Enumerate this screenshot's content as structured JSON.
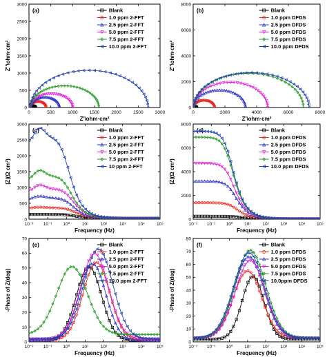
{
  "colors": {
    "Blank": "#000000",
    "s1": "#e8261e",
    "s2": "#2b35c6",
    "s3": "#e022d6",
    "s4": "#1f9a1f",
    "s5": "#1f3fb0"
  },
  "chart_data": [
    {
      "id": "a",
      "type": "scatter",
      "tag": "(a)",
      "xlabel": "Z'\\ohm·cm²",
      "ylabel": "Z''\\ohm·cm²",
      "xlim": [
        0,
        3000
      ],
      "ylim": [
        0,
        3000
      ],
      "xticks": [
        "0",
        "500",
        "1000",
        "1500",
        "2000",
        "2500",
        "3000"
      ],
      "yticks": [
        "0",
        "500",
        "1000",
        "1500",
        "2000",
        "2500",
        "3000"
      ],
      "legend_position": "top-right",
      "series": [
        {
          "name": "Blank",
          "color": "#000000",
          "marker": "square",
          "shape": "arc",
          "r0": 30,
          "r1": 150,
          "amp": 48
        },
        {
          "name": "1.0 ppm 2-FFT",
          "color": "#e8261e",
          "marker": "circle",
          "shape": "arc",
          "r0": 30,
          "r1": 390,
          "amp": 175
        },
        {
          "name": "2.5 ppm 2-FFT",
          "color": "#2b35c6",
          "marker": "triangle",
          "shape": "arc",
          "r0": 30,
          "r1": 700,
          "amp": 300
        },
        {
          "name": "5.0 ppm 2-FFT",
          "color": "#e022d6",
          "marker": "triangle-down",
          "shape": "arc",
          "r0": 30,
          "r1": 1000,
          "amp": 400
        },
        {
          "name": "7.5 ppm 2-FFT",
          "color": "#1f9a1f",
          "marker": "diamond",
          "shape": "arc",
          "r0": 30,
          "r1": 1600,
          "amp": 630
        },
        {
          "name": "10.0 ppm 2-FFT",
          "color": "#1f3fb0",
          "marker": "triangle-left",
          "shape": "arc",
          "r0": 30,
          "r1": 2720,
          "amp": 1080
        }
      ]
    },
    {
      "id": "b",
      "type": "scatter",
      "tag": "(b)",
      "xlabel": "Z'\\ohm·cm²",
      "ylabel": "Z''\\ohm·cm²",
      "xlim": [
        0,
        8000
      ],
      "ylim": [
        0,
        8000
      ],
      "xticks": [
        "0",
        "2000",
        "4000",
        "6000",
        "8000"
      ],
      "yticks": [
        "0",
        "2000",
        "4000",
        "6000",
        "8000"
      ],
      "legend_position": "top-right",
      "series": [
        {
          "name": "Blank",
          "color": "#000000",
          "marker": "square",
          "shape": "arc",
          "r0": 20,
          "r1": 220,
          "amp": 70
        },
        {
          "name": "1.0 ppm DFDS",
          "color": "#e8261e",
          "marker": "circle",
          "shape": "arc",
          "r0": 20,
          "r1": 1350,
          "amp": 560
        },
        {
          "name": "2.5 ppm DFDS",
          "color": "#2b35c6",
          "marker": "triangle",
          "shape": "arc",
          "r0": 20,
          "r1": 3300,
          "amp": 1350
        },
        {
          "name": "5.0 ppm DFDS",
          "color": "#e022d6",
          "marker": "triangle-down",
          "shape": "arc",
          "r0": 20,
          "r1": 4700,
          "amp": 1950
        },
        {
          "name": "7.5 ppm DFDS",
          "color": "#1f9a1f",
          "marker": "diamond",
          "shape": "arc",
          "r0": 20,
          "r1": 6950,
          "amp": 2650
        },
        {
          "name": "10.0 ppm DFDS",
          "color": "#1f3fb0",
          "marker": "triangle-left",
          "shape": "arc",
          "r0": 20,
          "r1": 7300,
          "amp": 2700
        }
      ]
    },
    {
      "id": "c",
      "type": "scatter",
      "tag": "(c)",
      "xlabel": "Frequency (Hz)",
      "ylabel": "|Z|(Ω cm²)",
      "xscale": "log",
      "xlim": [
        0.01,
        100000
      ],
      "ylim": [
        0,
        3000
      ],
      "xticks": [
        "10⁻²",
        "10⁻¹",
        "10⁰",
        "10¹",
        "10²",
        "10³",
        "10⁴",
        "10⁵"
      ],
      "yticks": [
        "0",
        "500",
        "1000",
        "1500",
        "2000",
        "2500",
        "3000"
      ],
      "legend_position": "top-right",
      "series": [
        {
          "name": "Blank",
          "color": "#000000",
          "marker": "square",
          "shape": "bode_mag",
          "zhigh": 30,
          "zlow": 150,
          "fc": 2.0,
          "bump": 0
        },
        {
          "name": "1.0 ppm 2-FFT",
          "color": "#e8261e",
          "marker": "circle",
          "shape": "bode_mag",
          "zhigh": 30,
          "zlow": 360,
          "fc": 2.0,
          "bump": 0.05
        },
        {
          "name": "2.5 ppm 2-FFT",
          "color": "#2b35c6",
          "marker": "triangle",
          "shape": "bode_mag",
          "zhigh": 30,
          "zlow": 680,
          "fc": 1.5,
          "bump": 0.08
        },
        {
          "name": "5.0 ppm 2-FFT",
          "color": "#e022d6",
          "marker": "triangle-down",
          "shape": "bode_mag",
          "zhigh": 30,
          "zlow": 960,
          "fc": 1.5,
          "bump": 0.12
        },
        {
          "name": "7.5 ppm 2-FFT",
          "color": "#1f9a1f",
          "marker": "diamond",
          "shape": "bode_mag",
          "zhigh": 30,
          "zlow": 1380,
          "fc": 1.2,
          "bump": 0.12
        },
        {
          "name": "10 ppm 2-FFT",
          "color": "#1f3fb0",
          "marker": "triangle-left",
          "shape": "bode_mag",
          "zhigh": 30,
          "zlow": 2620,
          "fc": 0.9,
          "bump": 0.1
        }
      ]
    },
    {
      "id": "d",
      "type": "scatter",
      "tag": "(d)",
      "xlabel": "Frequency (Hz)",
      "ylabel": "|Z|(Ω cm²)",
      "xscale": "log",
      "xlim": [
        0.01,
        100000
      ],
      "ylim": [
        0,
        8000
      ],
      "xticks": [
        "10⁻²",
        "10⁻¹",
        "10⁰",
        "10¹",
        "10²",
        "10³",
        "10⁴",
        "10⁵"
      ],
      "yticks": [
        "0",
        "2000",
        "4000",
        "6000",
        "8000"
      ],
      "legend_position": "top-right",
      "series": [
        {
          "name": "Blank",
          "color": "#000000",
          "marker": "square",
          "shape": "bode_mag",
          "zhigh": 30,
          "zlow": 240,
          "fc": 3.0,
          "bump": 0
        },
        {
          "name": "1.0 ppm DFDS",
          "color": "#e8261e",
          "marker": "circle",
          "shape": "bode_mag",
          "zhigh": 30,
          "zlow": 1380,
          "fc": 1.8,
          "bump": 0
        },
        {
          "name": "2.5 ppm DFDS",
          "color": "#2b35c6",
          "marker": "triangle",
          "shape": "bode_mag",
          "zhigh": 30,
          "zlow": 3200,
          "fc": 1.5,
          "bump": 0
        },
        {
          "name": "5.0 ppm DFDS",
          "color": "#e022d6",
          "marker": "triangle-down",
          "shape": "bode_mag",
          "zhigh": 30,
          "zlow": 4700,
          "fc": 1.2,
          "bump": 0
        },
        {
          "name": "7.5 ppm DFDS",
          "color": "#1f9a1f",
          "marker": "diamond",
          "shape": "bode_mag",
          "zhigh": 30,
          "zlow": 6900,
          "fc": 1.0,
          "bump": 0
        },
        {
          "name": "10.0 ppm DFDS",
          "color": "#1f3fb0",
          "marker": "triangle-left",
          "shape": "bode_mag",
          "zhigh": 30,
          "zlow": 7400,
          "fc": 1.0,
          "bump": 0
        }
      ]
    },
    {
      "id": "e",
      "type": "scatter",
      "tag": "(e)",
      "xlabel": "Frequency (Hz)",
      "ylabel": "-Phase of Z(deg)",
      "xscale": "log",
      "xlim": [
        0.01,
        100000
      ],
      "ylim": [
        0,
        70
      ],
      "xticks": [
        "10⁻²",
        "10⁻¹",
        "10⁰",
        "10¹",
        "10²",
        "10³",
        "10⁴",
        "10⁵"
      ],
      "yticks": [
        "0",
        "10",
        "20",
        "30",
        "40",
        "50",
        "60",
        "70"
      ],
      "legend_position": "top-right",
      "series": [
        {
          "name": "Blank",
          "color": "#000000",
          "marker": "square",
          "shape": "bode_phase",
          "peak": 51,
          "fpk": 16,
          "width": 0.95,
          "base": 1
        },
        {
          "name": "1.0 ppm 2-FFT",
          "color": "#e8261e",
          "marker": "circle",
          "shape": "bode_phase",
          "peak": 54,
          "fpk": 40,
          "width": 1.0,
          "base": 1
        },
        {
          "name": "2.5 ppm 2-FFT",
          "color": "#2b35c6",
          "marker": "triangle",
          "shape": "bode_phase",
          "peak": 53,
          "fpk": 25,
          "width": 1.0,
          "base": 1
        },
        {
          "name": "5.0 ppm 2-FFT",
          "color": "#e022d6",
          "marker": "triangle-down",
          "shape": "bode_phase",
          "peak": 60,
          "fpk": 32,
          "width": 1.05,
          "base": 2
        },
        {
          "name": "7.5 ppm 2-FFT",
          "color": "#1f9a1f",
          "marker": "diamond",
          "shape": "bode_phase",
          "peak": 51,
          "fpk": 2,
          "width": 1.15,
          "base": 5
        },
        {
          "name": "10.0 ppm 2-FFT",
          "color": "#1f3fb0",
          "marker": "triangle-left",
          "shape": "bode_phase",
          "peak": 63,
          "fpk": 50,
          "width": 1.1,
          "base": 2
        }
      ]
    },
    {
      "id": "f",
      "type": "scatter",
      "tag": "(f)",
      "xlabel": "Frequency (Hz)",
      "ylabel": "-Phase of Z(deg)",
      "xscale": "log",
      "xlim": [
        0.01,
        100000
      ],
      "ylim": [
        0,
        80
      ],
      "xticks": [
        "10⁻²",
        "10⁻¹",
        "10⁰",
        "10¹",
        "10²",
        "10³",
        "10⁴",
        "10⁵"
      ],
      "yticks": [
        "0",
        "10",
        "20",
        "30",
        "40",
        "50",
        "60",
        "70",
        "80"
      ],
      "legend_position": "top-right",
      "series": [
        {
          "name": "Blank",
          "color": "#000000",
          "marker": "square",
          "shape": "bode_phase",
          "peak": 51,
          "fpk": 20,
          "width": 0.85,
          "base": 2
        },
        {
          "name": "1.0 ppm DFDS",
          "color": "#e8261e",
          "marker": "circle",
          "shape": "bode_phase",
          "peak": 55,
          "fpk": 10,
          "width": 1.1,
          "base": 3
        },
        {
          "name": "2.5 ppm DFDS",
          "color": "#2b35c6",
          "marker": "triangle",
          "shape": "bode_phase",
          "peak": 66,
          "fpk": 12,
          "width": 1.15,
          "base": 3
        },
        {
          "name": "5.0 ppm DFDS",
          "color": "#e022d6",
          "marker": "triangle-down",
          "shape": "bode_phase",
          "peak": 63,
          "fpk": 14,
          "width": 1.15,
          "base": 3
        },
        {
          "name": "7.5 ppm DFDS",
          "color": "#1f9a1f",
          "marker": "diamond",
          "shape": "bode_phase",
          "peak": 71,
          "fpk": 14,
          "width": 1.2,
          "base": 3
        },
        {
          "name": "10.0ppm DFDS",
          "color": "#1f3fb0",
          "marker": "triangle-left",
          "shape": "bode_phase",
          "peak": 69,
          "fpk": 12,
          "width": 1.2,
          "base": 3
        }
      ]
    }
  ]
}
